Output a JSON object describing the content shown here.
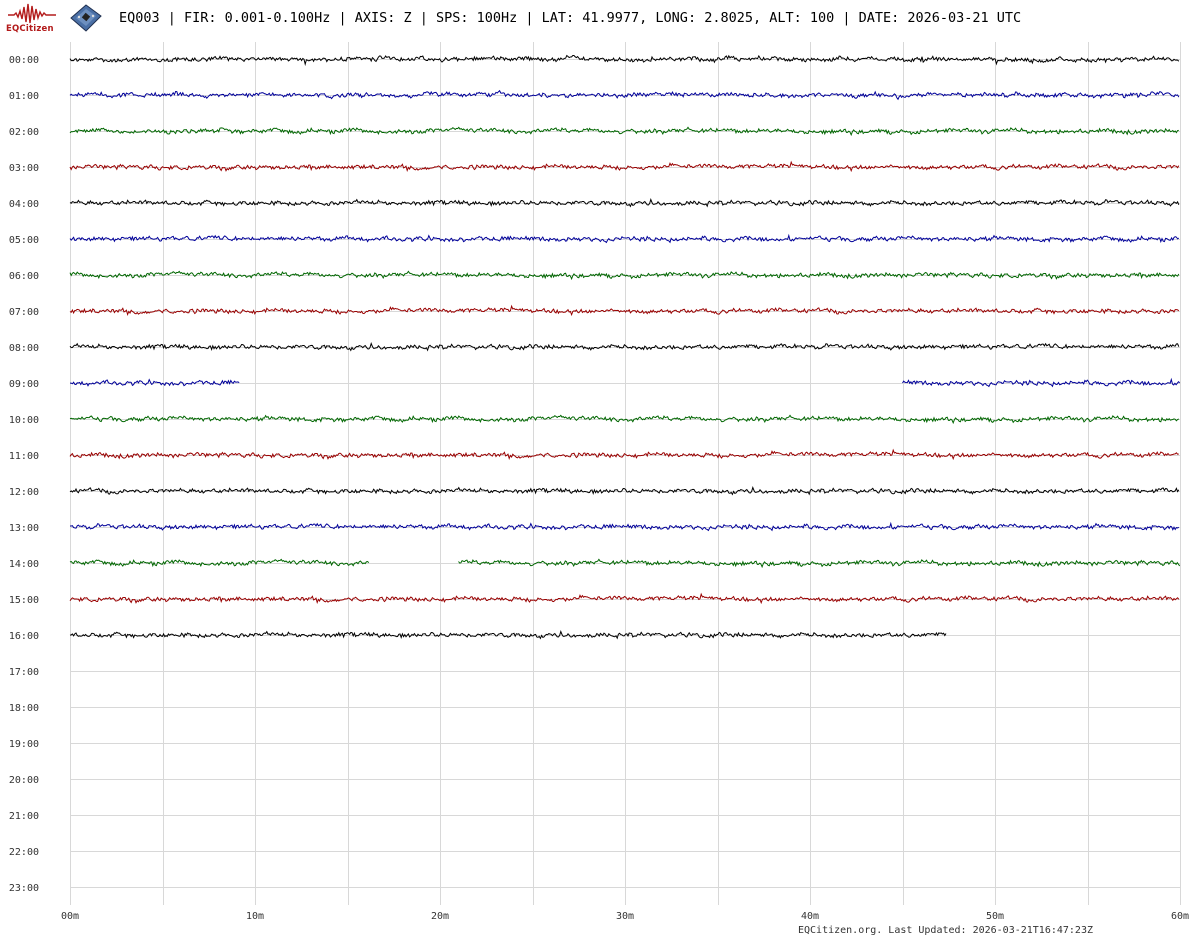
{
  "header": {
    "logo_text": "EQCitizen",
    "device_icon": "sensor-board-icon",
    "title": "EQ003 | FIR: 0.001-0.100Hz | AXIS: Z | SPS: 100Hz | LAT: 41.9977, LONG: 2.8025, ALT: 100 | DATE: 2026-03-21 UTC"
  },
  "footer": {
    "text": "EQCitizen.org. Last Updated: 2026-03-21T16:47:23Z"
  },
  "colors": {
    "trace_cycle": [
      "#000000",
      "#000099",
      "#006600",
      "#990000"
    ],
    "grid": "#d8d8d8",
    "label": "#333333",
    "brand": "#b31b1b"
  },
  "chart_data": {
    "type": "line",
    "title": "EQ003 | FIR: 0.001-0.100Hz | AXIS: Z | SPS: 100Hz | LAT: 41.9977, LONG: 2.8025, ALT: 100 | DATE: 2026-03-21 UTC",
    "x_tick_labels": [
      "00m",
      "10m",
      "20m",
      "30m",
      "40m",
      "50m",
      "60m"
    ],
    "x_range_minutes": [
      0,
      60
    ],
    "x_minor_interval_minutes": 5,
    "grid": true,
    "rows": [
      {
        "label": "00:00",
        "segments": [
          [
            0,
            60
          ]
        ]
      },
      {
        "label": "01:00",
        "segments": [
          [
            0,
            60
          ]
        ]
      },
      {
        "label": "02:00",
        "segments": [
          [
            0,
            60
          ]
        ]
      },
      {
        "label": "03:00",
        "segments": [
          [
            0,
            60
          ]
        ]
      },
      {
        "label": "04:00",
        "segments": [
          [
            0,
            60
          ]
        ]
      },
      {
        "label": "05:00",
        "segments": [
          [
            0,
            60
          ]
        ]
      },
      {
        "label": "06:00",
        "segments": [
          [
            0,
            60
          ]
        ]
      },
      {
        "label": "07:00",
        "segments": [
          [
            0,
            60
          ]
        ]
      },
      {
        "label": "08:00",
        "segments": [
          [
            0,
            60
          ]
        ]
      },
      {
        "label": "09:00",
        "segments": [
          [
            0,
            9.2
          ],
          [
            45,
            60
          ]
        ]
      },
      {
        "label": "10:00",
        "segments": [
          [
            0,
            60
          ]
        ]
      },
      {
        "label": "11:00",
        "segments": [
          [
            0,
            60
          ]
        ]
      },
      {
        "label": "12:00",
        "segments": [
          [
            0,
            60
          ]
        ]
      },
      {
        "label": "13:00",
        "segments": [
          [
            0,
            60
          ]
        ]
      },
      {
        "label": "14:00",
        "segments": [
          [
            0,
            16.2
          ],
          [
            21,
            60
          ]
        ]
      },
      {
        "label": "15:00",
        "segments": [
          [
            0,
            60
          ]
        ]
      },
      {
        "label": "16:00",
        "segments": [
          [
            0,
            47.4
          ]
        ]
      },
      {
        "label": "17:00",
        "segments": []
      },
      {
        "label": "18:00",
        "segments": []
      },
      {
        "label": "19:00",
        "segments": []
      },
      {
        "label": "20:00",
        "segments": []
      },
      {
        "label": "21:00",
        "segments": []
      },
      {
        "label": "22:00",
        "segments": []
      },
      {
        "label": "23:00",
        "segments": []
      }
    ]
  }
}
